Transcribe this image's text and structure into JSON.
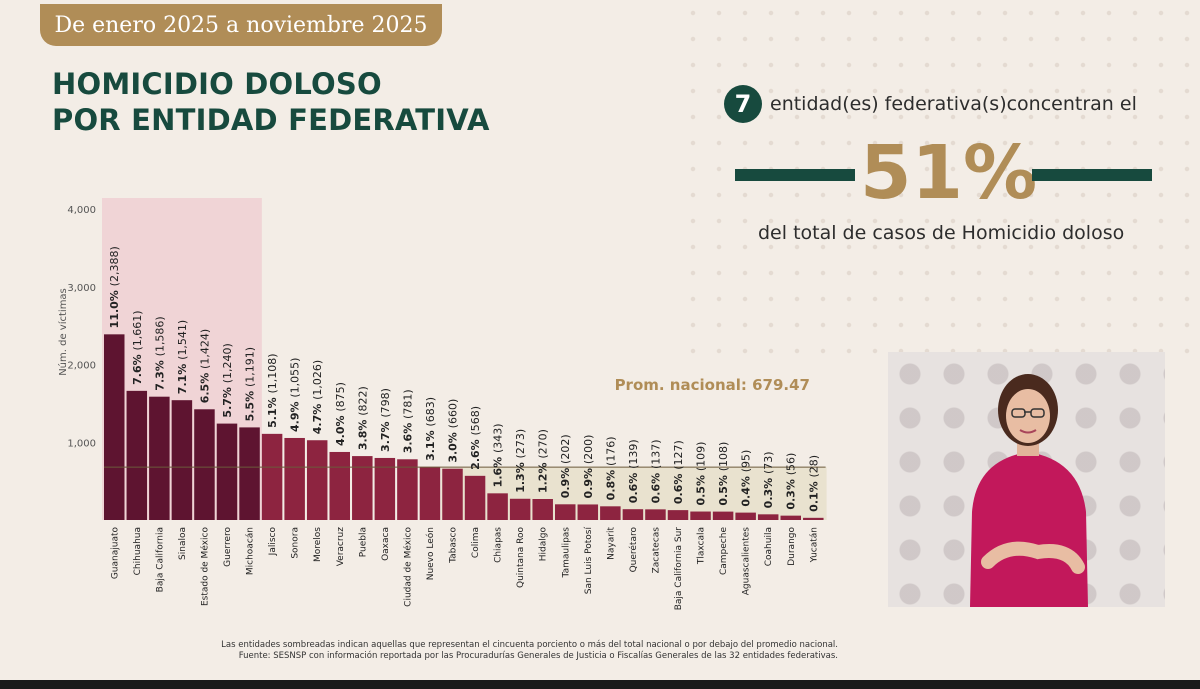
{
  "header": {
    "date_range": "De enero 2025 a noviembre 2025",
    "title_line1": "HOMICIDIO DOLOSO",
    "title_line2": "POR ENTIDAD FEDERATIVA"
  },
  "summary": {
    "count": "7",
    "text_before": "entidad(es) federativa(s)concentran el",
    "percentage": "51%",
    "text_after": "del total de casos de Homicidio doloso"
  },
  "footnotes": {
    "line1": "Las entidades sombreadas indican aquellas que representan el cincuenta porciento o más del total nacional o por debajo del promedio nacional.",
    "line2": "Fuente: SESNSP con información reportada por las Procuradurías Generales de Justicia o Fiscalías Generales de las 32 entidades federativas."
  },
  "colors": {
    "accent_green": "#174a3e",
    "accent_gold": "#b08d57",
    "bar_top": "#5e1430",
    "bar_rest": "#8d2440",
    "highlight_band": "#f0d4d6",
    "below_avg_band": "#e9e2cf"
  },
  "chart_data": {
    "type": "bar",
    "ylabel": "Núm. de víctimas",
    "ylim": [
      0,
      4000
    ],
    "yticks": [
      1000,
      2000,
      3000,
      4000
    ],
    "ytick_labels": [
      "1,000",
      "2,000",
      "3,000",
      "4,000"
    ],
    "average": 679.47,
    "average_label": "Prom. nacional: 679.47",
    "highlighted_count": 7,
    "categories": [
      "Guanajuato",
      "Chihuahua",
      "Baja California",
      "Sinaloa",
      "Estado de México",
      "Guerrero",
      "Michoacán",
      "Jalisco",
      "Sonora",
      "Morelos",
      "Veracruz",
      "Puebla",
      "Oaxaca",
      "Ciudad de México",
      "Nuevo León",
      "Tabasco",
      "Colima",
      "Chiapas",
      "Quintana Roo",
      "Hidalgo",
      "Tamaulipas",
      "San Luis Potosí",
      "Nayarit",
      "Querétaro",
      "Zacatecas",
      "Baja California Sur",
      "Tlaxcala",
      "Campeche",
      "Aguascalientes",
      "Coahuila",
      "Durango",
      "Yucatán"
    ],
    "values": [
      2388,
      1661,
      1586,
      1541,
      1424,
      1240,
      1191,
      1108,
      1055,
      1026,
      875,
      822,
      798,
      781,
      683,
      660,
      568,
      343,
      273,
      270,
      202,
      200,
      176,
      139,
      137,
      127,
      109,
      108,
      95,
      73,
      56,
      28
    ],
    "pct_labels": [
      "11.0%",
      "7.6%",
      "7.3%",
      "7.1%",
      "6.5%",
      "5.7%",
      "5.5%",
      "5.1%",
      "4.9%",
      "4.7%",
      "4.0%",
      "3.8%",
      "3.7%",
      "3.6%",
      "3.1%",
      "3.0%",
      "2.6%",
      "1.6%",
      "1.3%",
      "1.2%",
      "0.9%",
      "0.9%",
      "0.8%",
      "0.6%",
      "0.6%",
      "0.6%",
      "0.5%",
      "0.5%",
      "0.4%",
      "0.3%",
      "0.3%",
      "0.1%"
    ],
    "count_labels": [
      "(2,388)",
      "(1,661)",
      "(1,586)",
      "(1,541)",
      "(1,424)",
      "(1,240)",
      "(1,191)",
      "(1,108)",
      "(1,055)",
      "(1,026)",
      "(875)",
      "(822)",
      "(798)",
      "(781)",
      "(683)",
      "(660)",
      "(568)",
      "(343)",
      "(273)",
      "(270)",
      "(202)",
      "(200)",
      "(176)",
      "(139)",
      "(137)",
      "(127)",
      "(109)",
      "(108)",
      "(95)",
      "(73)",
      "(56)",
      "(28)"
    ]
  }
}
